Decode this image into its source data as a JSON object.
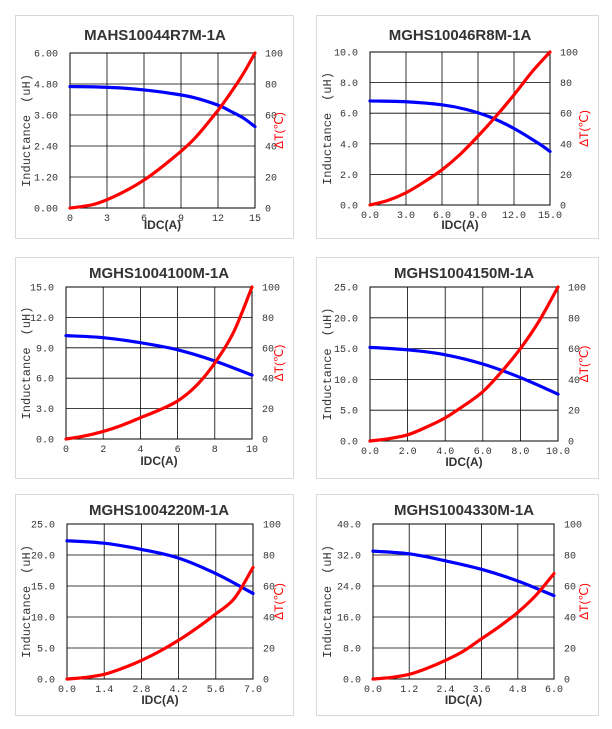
{
  "chart_data": [
    {
      "type": "line",
      "title": "MAHS10044R7M-1A",
      "xlabel": "IDC(A)",
      "ylabel_left": "Inductance　(uH)",
      "ylabel_right": "ΔT(℃)",
      "xlim": [
        0,
        15
      ],
      "ylim_left": [
        0,
        6
      ],
      "ylim_right": [
        0,
        100
      ],
      "xticks": [
        "0",
        "3",
        "6",
        "9",
        "12",
        "15"
      ],
      "yticks_left": [
        "0.00",
        "1.20",
        "2.40",
        "3.60",
        "4.80",
        "6.00"
      ],
      "yticks_right": [
        "0",
        "20",
        "40",
        "60",
        "80",
        "100"
      ],
      "grid": true,
      "series": [
        {
          "name": "Inductance",
          "axis": "left",
          "color": "#0000ff",
          "x": [
            0,
            2,
            4,
            6,
            8,
            10,
            12,
            13,
            14,
            15
          ],
          "y": [
            4.7,
            4.69,
            4.65,
            4.57,
            4.45,
            4.28,
            3.98,
            3.75,
            3.5,
            3.15
          ]
        },
        {
          "name": "Temperature rise",
          "axis": "right",
          "color": "#ff0000",
          "x": [
            0,
            2,
            4,
            6,
            8,
            10,
            12,
            13,
            14,
            15
          ],
          "y": [
            0,
            2.5,
            9,
            18,
            30,
            44,
            63,
            74,
            86,
            100
          ]
        }
      ]
    },
    {
      "type": "line",
      "title": "MGHS10046R8M-1A",
      "xlabel": "IDC(A)",
      "ylabel_left": "Inductance　(uH)",
      "ylabel_right": "ΔT(℃)",
      "xlim": [
        0,
        15
      ],
      "ylim_left": [
        0,
        10
      ],
      "ylim_right": [
        0,
        100
      ],
      "xticks": [
        "0.0",
        "3.0",
        "6.0",
        "9.0",
        "12.0",
        "15.0"
      ],
      "yticks_left": [
        "0.0",
        "2.0",
        "4.0",
        "6.0",
        "8.0",
        "10.0"
      ],
      "yticks_right": [
        "0",
        "20",
        "40",
        "60",
        "80",
        "100"
      ],
      "grid": true,
      "series": [
        {
          "name": "Inductance",
          "axis": "left",
          "color": "#0000ff",
          "x": [
            0,
            3,
            6,
            8,
            10,
            12,
            14,
            15
          ],
          "y": [
            6.8,
            6.75,
            6.55,
            6.25,
            5.75,
            5.0,
            4.05,
            3.5
          ]
        },
        {
          "name": "Temperature rise",
          "axis": "right",
          "color": "#ff0000",
          "x": [
            0,
            1.5,
            3,
            4.5,
            6,
            7.5,
            9,
            10.5,
            12,
            13.5,
            15
          ],
          "y": [
            0,
            3,
            8,
            15,
            23,
            33,
            45,
            58,
            72,
            87,
            100
          ]
        }
      ]
    },
    {
      "type": "line",
      "title": "MGHS1004100M-1A",
      "xlabel": "IDC(A)",
      "ylabel_left": "Inductance　(uH)",
      "ylabel_right": "ΔT(℃)",
      "xlim": [
        0,
        10
      ],
      "ylim_left": [
        0,
        15
      ],
      "ylim_right": [
        0,
        100
      ],
      "xticks": [
        "0",
        "2",
        "4",
        "6",
        "8",
        "10"
      ],
      "yticks_left": [
        "0.0",
        "3.0",
        "6.0",
        "9.0",
        "12.0",
        "15.0"
      ],
      "yticks_right": [
        "0",
        "20",
        "40",
        "60",
        "80",
        "100"
      ],
      "grid": true,
      "series": [
        {
          "name": "Inductance",
          "axis": "left",
          "color": "#0000ff",
          "x": [
            0,
            2,
            4,
            6,
            8,
            10
          ],
          "y": [
            10.2,
            10.0,
            9.5,
            8.8,
            7.7,
            6.3
          ]
        },
        {
          "name": "Temperature rise",
          "axis": "right",
          "color": "#ff0000",
          "x": [
            0,
            1,
            2,
            3,
            4,
            5,
            6,
            7,
            8,
            9,
            10
          ],
          "y": [
            0,
            2,
            5,
            9,
            14,
            19,
            25,
            35,
            50,
            70,
            100
          ]
        }
      ]
    },
    {
      "type": "line",
      "title": "MGHS1004150M-1A",
      "xlabel": "IDC(A)",
      "ylabel_left": "Inductance　(uH)",
      "ylabel_right": "ΔT(℃)",
      "xlim": [
        0,
        10
      ],
      "ylim_left": [
        0,
        25
      ],
      "ylim_right": [
        0,
        100
      ],
      "xticks": [
        "0.0",
        "2.0",
        "4.0",
        "6.0",
        "8.0",
        "10.0"
      ],
      "yticks_left": [
        "0.0",
        "5.0",
        "10.0",
        "15.0",
        "20.0",
        "25.0"
      ],
      "yticks_right": [
        "0",
        "20",
        "40",
        "60",
        "80",
        "100"
      ],
      "grid": true,
      "series": [
        {
          "name": "Inductance",
          "axis": "left",
          "color": "#0000ff",
          "x": [
            0,
            2,
            4,
            6,
            8,
            10
          ],
          "y": [
            15.2,
            14.8,
            14.0,
            12.5,
            10.3,
            7.6
          ]
        },
        {
          "name": "Temperature rise",
          "axis": "right",
          "color": "#ff0000",
          "x": [
            0,
            1,
            2,
            3,
            4,
            5,
            6,
            7,
            8,
            9,
            10
          ],
          "y": [
            0,
            1.5,
            4,
            9,
            15,
            23,
            32,
            45,
            60,
            78,
            100
          ]
        }
      ]
    },
    {
      "type": "line",
      "title": "MGHS1004220M-1A",
      "xlabel": "IDC(A)",
      "ylabel_left": "Inductance　(uH)",
      "ylabel_right": "ΔT(℃)",
      "xlim": [
        0,
        7
      ],
      "ylim_left": [
        0,
        25
      ],
      "ylim_right": [
        0,
        100
      ],
      "xticks": [
        "0.0",
        "1.4",
        "2.8",
        "4.2",
        "5.6",
        "7.0"
      ],
      "yticks_left": [
        "0.0",
        "5.0",
        "10.0",
        "15.0",
        "20.0",
        "25.0"
      ],
      "yticks_right": [
        "0",
        "20",
        "40",
        "60",
        "80",
        "100"
      ],
      "grid": true,
      "series": [
        {
          "name": "Inductance",
          "axis": "left",
          "color": "#0000ff",
          "x": [
            0,
            1.4,
            2.8,
            4.2,
            5.6,
            7.0
          ],
          "y": [
            22.3,
            21.9,
            20.9,
            19.5,
            17.0,
            13.8
          ]
        },
        {
          "name": "Temperature rise",
          "axis": "right",
          "color": "#ff0000",
          "x": [
            0,
            0.7,
            1.4,
            2.1,
            2.8,
            3.5,
            4.2,
            4.9,
            5.6,
            6.3,
            7.0
          ],
          "y": [
            0,
            1,
            3,
            7,
            12,
            18,
            25,
            33,
            42,
            52,
            72
          ]
        }
      ]
    },
    {
      "type": "line",
      "title": "MGHS1004330M-1A",
      "xlabel": "IDC(A)",
      "ylabel_left": "Inductance　(uH)",
      "ylabel_right": "ΔT(℃)",
      "xlim": [
        0,
        6
      ],
      "ylim_left": [
        0,
        40
      ],
      "ylim_right": [
        0,
        100
      ],
      "xticks": [
        "0.0",
        "1.2",
        "2.4",
        "3.6",
        "4.8",
        "6.0"
      ],
      "yticks_left": [
        "0.0",
        "8.0",
        "16.0",
        "24.0",
        "32.0",
        "40.0"
      ],
      "yticks_right": [
        "0",
        "20",
        "40",
        "60",
        "80",
        "100"
      ],
      "grid": true,
      "series": [
        {
          "name": "Inductance",
          "axis": "left",
          "color": "#0000ff",
          "x": [
            0,
            1.2,
            2.4,
            3.6,
            4.8,
            6.0
          ],
          "y": [
            33.0,
            32.3,
            30.5,
            28.3,
            25.3,
            21.5
          ]
        },
        {
          "name": "Temperature rise",
          "axis": "right",
          "color": "#ff0000",
          "x": [
            0,
            0.6,
            1.2,
            1.8,
            2.4,
            3.0,
            3.6,
            4.2,
            4.8,
            5.4,
            6.0
          ],
          "y": [
            0,
            1,
            3,
            7,
            12,
            18,
            26,
            34,
            43,
            54,
            68
          ]
        }
      ]
    }
  ]
}
